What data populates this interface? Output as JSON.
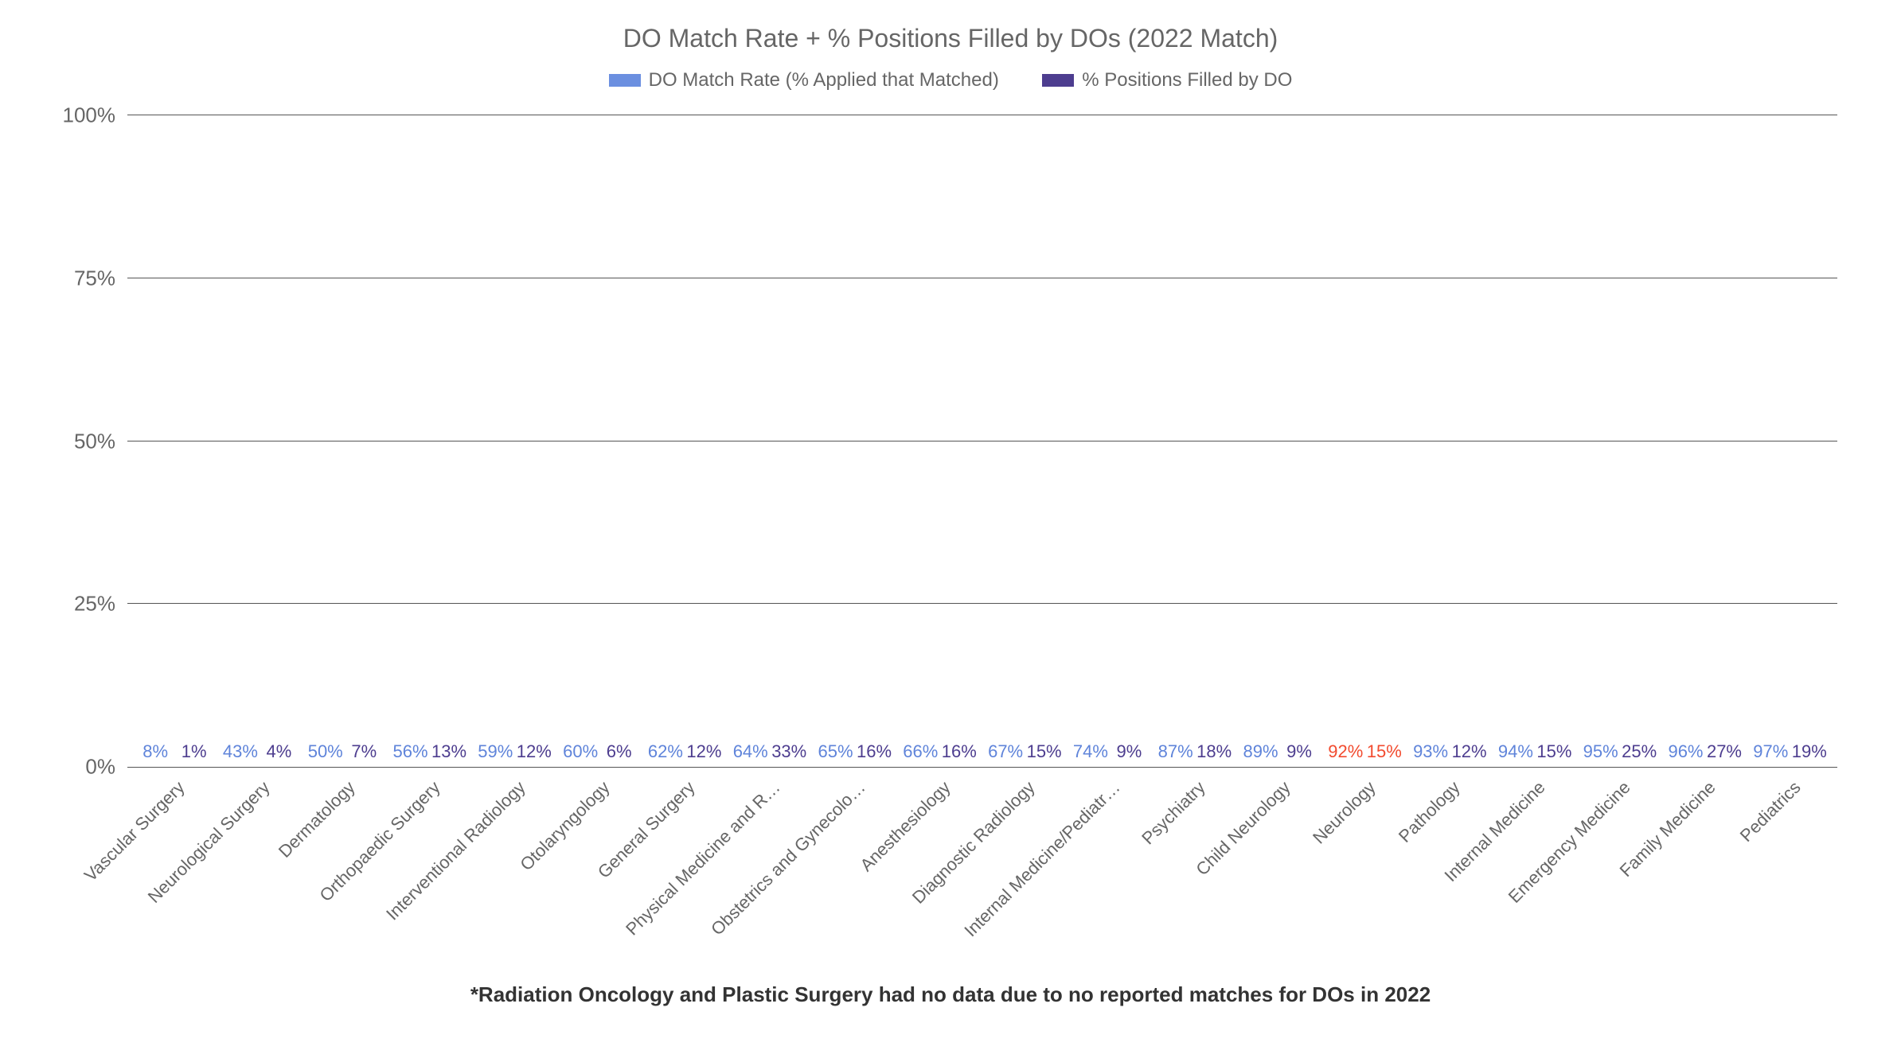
{
  "chart": {
    "type": "bar",
    "title": "DO Match Rate + % Positions Filled by DOs (2022 Match)",
    "title_color": "#666666",
    "title_fontsize": 32,
    "background_color": "#ffffff",
    "grid_color": "#555555",
    "ylim": [
      0,
      100
    ],
    "ytick_step": 25,
    "yticks": [
      "0%",
      "25%",
      "50%",
      "75%",
      "100%"
    ],
    "axis_label_color": "#666666",
    "axis_label_fontsize": 26,
    "x_label_fontsize": 22,
    "x_label_rotation": -45,
    "data_label_fontsize": 22,
    "legend": {
      "position": "top-center",
      "fontsize": 24,
      "color": "#666666",
      "items": [
        {
          "label": "DO Match Rate (% Applied that Matched)",
          "color": "#6b8fe0"
        },
        {
          "label": "% Positions Filled by DO",
          "color": "#4d3d8f"
        }
      ]
    },
    "series_colors": {
      "match_rate": "#6b8fe0",
      "positions_filled": "#4d3d8f",
      "highlight": "#f24b2f"
    },
    "label_colors": {
      "match_rate": "#5f84da",
      "positions_filled": "#4d3d8f",
      "highlight": "#f24b2f"
    },
    "categories": [
      {
        "name": "Vascular Surgery",
        "short": "Vascular Surgery",
        "match_rate": 8,
        "positions_filled": 1,
        "highlight": false
      },
      {
        "name": "Neurological Surgery",
        "short": "Neurological Surgery",
        "match_rate": 43,
        "positions_filled": 4,
        "highlight": false
      },
      {
        "name": "Dermatology",
        "short": "Dermatology",
        "match_rate": 50,
        "positions_filled": 7,
        "highlight": false
      },
      {
        "name": "Orthopaedic Surgery",
        "short": "Orthopaedic Surgery",
        "match_rate": 56,
        "positions_filled": 13,
        "highlight": false
      },
      {
        "name": "Interventional Radiology",
        "short": "Interventional Radiology",
        "match_rate": 59,
        "positions_filled": 12,
        "highlight": false
      },
      {
        "name": "Otolaryngology",
        "short": "Otolaryngology",
        "match_rate": 60,
        "positions_filled": 6,
        "highlight": false
      },
      {
        "name": "General Surgery",
        "short": "General Surgery",
        "match_rate": 62,
        "positions_filled": 12,
        "highlight": false
      },
      {
        "name": "Physical Medicine and R…",
        "short": "Physical Medicine and R…",
        "match_rate": 64,
        "positions_filled": 33,
        "highlight": false
      },
      {
        "name": "Obstetrics and Gynecolo…",
        "short": "Obstetrics and Gynecolo…",
        "match_rate": 65,
        "positions_filled": 16,
        "highlight": false
      },
      {
        "name": "Anesthesiology",
        "short": "Anesthesiology",
        "match_rate": 66,
        "positions_filled": 16,
        "highlight": false
      },
      {
        "name": "Diagnostic Radiology",
        "short": "Diagnostic Radiology",
        "match_rate": 67,
        "positions_filled": 15,
        "highlight": false
      },
      {
        "name": "Internal Medicine/Pediatr…",
        "short": "Internal Medicine/Pediatr…",
        "match_rate": 74,
        "positions_filled": 9,
        "highlight": false
      },
      {
        "name": "Psychiatry",
        "short": "Psychiatry",
        "match_rate": 87,
        "positions_filled": 18,
        "highlight": false
      },
      {
        "name": "Child Neurology",
        "short": "Child Neurology",
        "match_rate": 89,
        "positions_filled": 9,
        "highlight": false
      },
      {
        "name": "Neurology",
        "short": "Neurology",
        "match_rate": 92,
        "positions_filled": 15,
        "highlight": true
      },
      {
        "name": "Pathology",
        "short": "Pathology",
        "match_rate": 93,
        "positions_filled": 12,
        "highlight": false
      },
      {
        "name": "Internal Medicine",
        "short": "Internal Medicine",
        "match_rate": 94,
        "positions_filled": 15,
        "highlight": false
      },
      {
        "name": "Emergency Medicine",
        "short": "Emergency Medicine",
        "match_rate": 95,
        "positions_filled": 25,
        "highlight": false
      },
      {
        "name": "Family Medicine",
        "short": "Family Medicine",
        "match_rate": 96,
        "positions_filled": 27,
        "highlight": false
      },
      {
        "name": "Pediatrics",
        "short": "Pediatrics",
        "match_rate": 97,
        "positions_filled": 19,
        "highlight": false
      }
    ],
    "footnote": "*Radiation Oncology and Plastic Surgery had no data due to no reported matches for DOs in 2022",
    "footnote_color": "#333333",
    "footnote_fontsize": 26
  }
}
